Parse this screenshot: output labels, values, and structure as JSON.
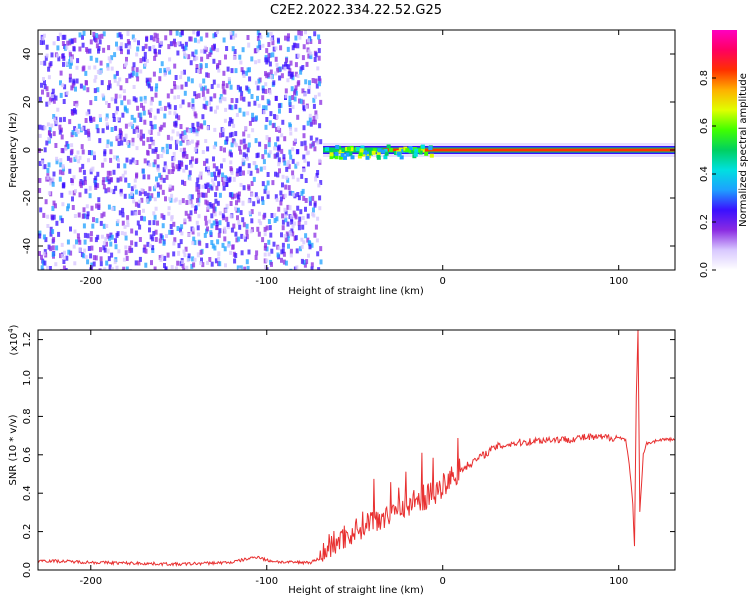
{
  "page": {
    "title": "C2E2.2022.334.22.52.G25"
  },
  "chart_data": [
    {
      "type": "heatmap",
      "title": "C2E2.2022.334.22.52.G25",
      "xlabel": "Height of straight line (km)",
      "ylabel": "Frequency (Hz)",
      "xlim": [
        -230,
        132
      ],
      "ylim": [
        -50,
        50
      ],
      "x_ticks": [
        -200,
        -100,
        0,
        100
      ],
      "y_ticks": [
        -40,
        -20,
        0,
        20,
        40
      ],
      "colorbar": {
        "label": "Normalized spectral amplitude",
        "range": [
          0.0,
          1.0
        ],
        "ticks": [
          "0.0",
          "0.2",
          "0.4",
          "0.6",
          "0.8"
        ],
        "colors": [
          "#ffffff",
          "#d8c8ff",
          "#8a2be2",
          "#3a10ff",
          "#1ea0ff",
          "#00e0e0",
          "#00d060",
          "#40ff00",
          "#e0ff00",
          "#ffb000",
          "#ff3000",
          "#ff0060",
          "#ff00c0"
        ]
      },
      "features": {
        "noise_x_range": [
          -230,
          -70
        ],
        "carrier_start_x": -68,
        "carrier_frequency_hz": 0
      }
    },
    {
      "type": "line",
      "xlabel": "Height of straight line (km)",
      "ylabel": "SNR (10 * v/v)",
      "y_scale_label": "(x10",
      "y_scale_exp": "4",
      "xlim": [
        -230,
        132
      ],
      "ylim": [
        0.0,
        1.25
      ],
      "x_ticks": [
        -200,
        -100,
        0,
        100
      ],
      "y_ticks": [
        0.0,
        0.2,
        0.4,
        0.6,
        0.8,
        1.0,
        1.2
      ],
      "line_color": "#e83030",
      "series": [
        {
          "x": [
            -230,
            -200,
            -150,
            -120,
            -105,
            -100,
            -90,
            -75,
            -70,
            -65,
            -60,
            -55,
            -50,
            -45,
            -40,
            -35,
            -30,
            -25,
            -20,
            -15,
            -10,
            -5,
            0,
            5,
            10,
            15,
            20,
            25,
            30,
            40,
            50,
            60,
            70,
            80,
            90,
            100,
            104,
            106,
            108,
            109,
            110,
            111,
            112,
            114,
            116,
            120,
            125,
            132
          ],
          "y": [
            0.05,
            0.04,
            0.03,
            0.04,
            0.07,
            0.05,
            0.04,
            0.04,
            0.06,
            0.12,
            0.15,
            0.18,
            0.2,
            0.24,
            0.26,
            0.28,
            0.3,
            0.32,
            0.34,
            0.36,
            0.38,
            0.4,
            0.42,
            0.48,
            0.52,
            0.55,
            0.58,
            0.61,
            0.64,
            0.66,
            0.67,
            0.68,
            0.68,
            0.69,
            0.69,
            0.69,
            0.68,
            0.55,
            0.35,
            0.12,
            0.9,
            1.25,
            0.3,
            0.6,
            0.66,
            0.67,
            0.68,
            0.68
          ]
        }
      ]
    }
  ]
}
